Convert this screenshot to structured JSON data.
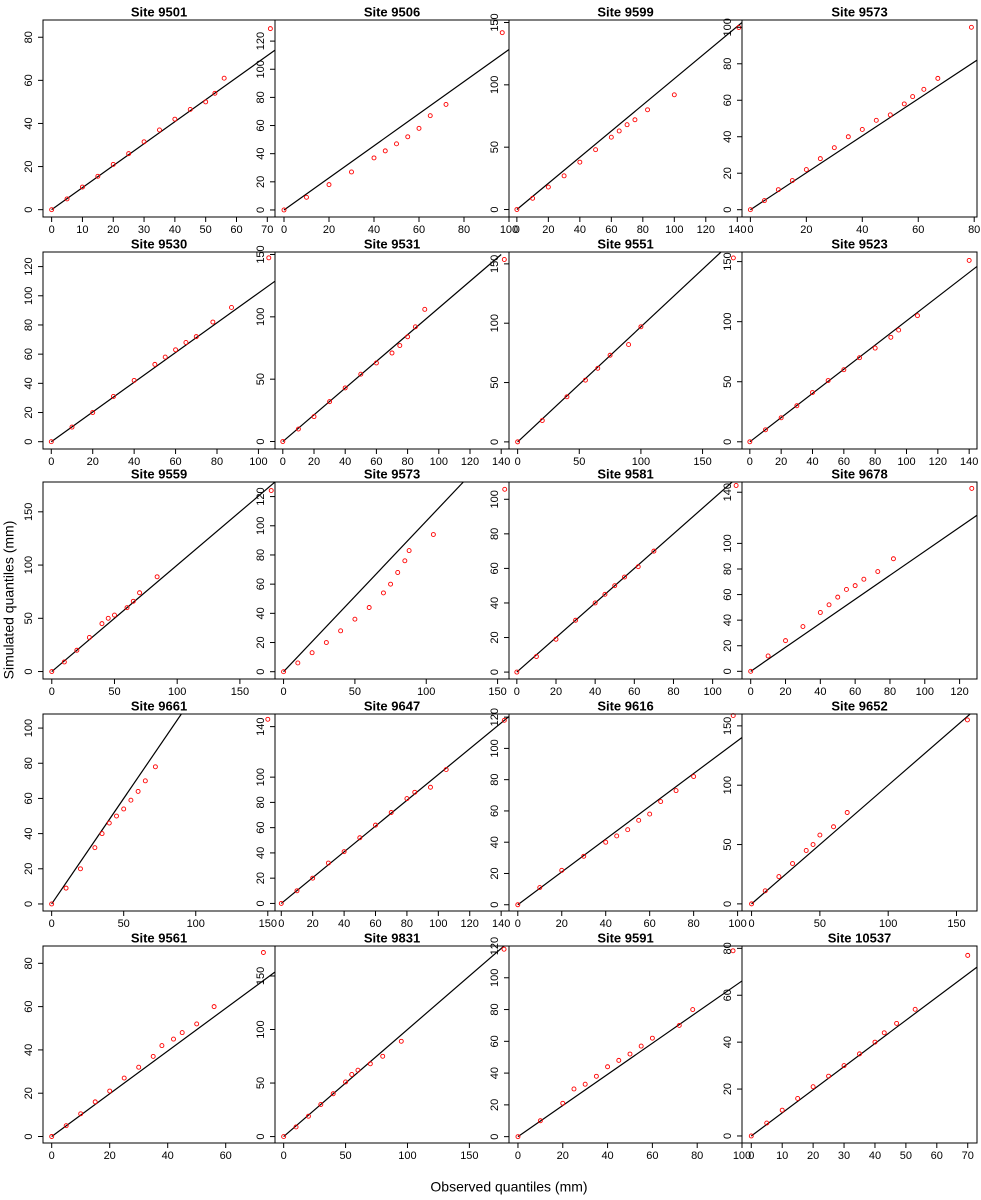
{
  "x_label": "Observed quantiles (mm)",
  "y_label": "Simulated quantiles (mm)",
  "chart_data": [
    {
      "type": "scatter",
      "title": "Site 9501",
      "color": "#ff0000",
      "xlim": [
        -2.8,
        72.5
      ],
      "ylim": [
        -3.4,
        88
      ],
      "xticks": [
        0,
        10,
        20,
        30,
        40,
        50,
        60,
        70
      ],
      "yticks": [
        0,
        20,
        40,
        60,
        80
      ],
      "x": [
        0,
        5,
        10,
        15,
        20,
        25,
        30,
        35,
        40,
        45,
        50,
        53,
        56,
        71
      ],
      "values": [
        0,
        5,
        10.5,
        15.5,
        21,
        26,
        31.5,
        37,
        42,
        46.5,
        50,
        54,
        61,
        84
      ],
      "ref_line": {
        "color": "#000000",
        "x": [
          0,
          72.5
        ],
        "values": [
          0,
          74
        ]
      }
    },
    {
      "type": "scatter",
      "title": "Site 9506",
      "color": "#ff0000",
      "xlim": [
        -4,
        100
      ],
      "ylim": [
        -5,
        135
      ],
      "xticks": [
        0,
        20,
        40,
        60,
        80,
        100
      ],
      "yticks": [
        0,
        20,
        40,
        60,
        80,
        100,
        120
      ],
      "x": [
        0,
        10,
        20,
        30,
        40,
        45,
        50,
        55,
        60,
        65,
        72,
        97
      ],
      "values": [
        0,
        9,
        18,
        27,
        37,
        42,
        47,
        52,
        58,
        67,
        75,
        126
      ],
      "ref_line": {
        "color": "#000000",
        "x": [
          0,
          100
        ],
        "values": [
          0,
          114
        ]
      }
    },
    {
      "type": "scatter",
      "title": "Site 9599",
      "color": "#ff0000",
      "xlim": [
        -5,
        143
      ],
      "ylim": [
        -6,
        152
      ],
      "xticks": [
        0,
        20,
        40,
        60,
        80,
        100,
        120,
        140
      ],
      "yticks": [
        0,
        50,
        100,
        150
      ],
      "x": [
        0,
        10,
        20,
        30,
        40,
        50,
        60,
        65,
        70,
        75,
        83,
        100,
        141
      ],
      "values": [
        0,
        9,
        18,
        27,
        38,
        48,
        58,
        63,
        68,
        72,
        80,
        92,
        146
      ],
      "ref_line": {
        "color": "#000000",
        "x": [
          0,
          143
        ],
        "values": [
          0,
          150
        ]
      }
    },
    {
      "type": "scatter",
      "title": "Site 9573",
      "color": "#ff0000",
      "xlim": [
        -3,
        81
      ],
      "ylim": [
        -4,
        104
      ],
      "xticks": [
        0,
        20,
        40,
        60,
        80
      ],
      "yticks": [
        0,
        20,
        40,
        60,
        80,
        100
      ],
      "x": [
        0,
        5,
        10,
        15,
        20,
        25,
        30,
        35,
        40,
        45,
        50,
        55,
        58,
        62,
        67,
        79
      ],
      "values": [
        0,
        5,
        11,
        16,
        22,
        28,
        34,
        40,
        44,
        49,
        52,
        58,
        62,
        66,
        72,
        100
      ],
      "ref_line": {
        "color": "#000000",
        "x": [
          0,
          81
        ],
        "values": [
          0,
          82
        ]
      }
    },
    {
      "type": "scatter",
      "title": "Site 9530",
      "color": "#ff0000",
      "xlim": [
        -4,
        108
      ],
      "ylim": [
        -5,
        130
      ],
      "xticks": [
        0,
        20,
        40,
        60,
        80,
        100
      ],
      "yticks": [
        0,
        20,
        40,
        60,
        80,
        100,
        120
      ],
      "x": [
        0,
        10,
        20,
        30,
        40,
        50,
        55,
        60,
        65,
        70,
        78,
        87,
        105
      ],
      "values": [
        0,
        10,
        20,
        31,
        42,
        53,
        58,
        63,
        68,
        72,
        82,
        92,
        126
      ],
      "ref_line": {
        "color": "#000000",
        "x": [
          0,
          108
        ],
        "values": [
          0,
          110
        ]
      }
    },
    {
      "type": "scatter",
      "title": "Site 9531",
      "color": "#ff0000",
      "xlim": [
        -5,
        145
      ],
      "ylim": [
        -6,
        152
      ],
      "xticks": [
        0,
        20,
        40,
        60,
        80,
        100,
        120,
        140
      ],
      "yticks": [
        0,
        50,
        100,
        150
      ],
      "x": [
        0,
        10,
        20,
        30,
        40,
        50,
        60,
        70,
        75,
        80,
        85,
        91,
        142
      ],
      "values": [
        0,
        10,
        20,
        32,
        43,
        54,
        63,
        71,
        77,
        84,
        92,
        106,
        146
      ],
      "ref_line": {
        "color": "#000000",
        "x": [
          0,
          140
        ],
        "values": [
          0,
          150
        ]
      }
    },
    {
      "type": "scatter",
      "title": "Site 9551",
      "color": "#ff0000",
      "xlim": [
        -7,
        182
      ],
      "ylim": [
        -6,
        160
      ],
      "xticks": [
        0,
        50,
        100,
        150
      ],
      "yticks": [
        0,
        50,
        100,
        150
      ],
      "x": [
        0,
        20,
        40,
        55,
        65,
        75,
        90,
        100,
        175
      ],
      "values": [
        0,
        18,
        38,
        52,
        62,
        73,
        82,
        97,
        155
      ],
      "ref_line": {
        "color": "#000000",
        "x": [
          0,
          165
        ],
        "values": [
          0,
          160
        ]
      }
    },
    {
      "type": "scatter",
      "title": "Site 9523",
      "color": "#ff0000",
      "xlim": [
        -5,
        145
      ],
      "ylim": [
        -6,
        158
      ],
      "xticks": [
        0,
        20,
        40,
        60,
        80,
        100,
        120,
        140
      ],
      "yticks": [
        0,
        50,
        100,
        150
      ],
      "x": [
        0,
        10,
        20,
        30,
        40,
        50,
        60,
        70,
        80,
        90,
        95,
        107,
        140
      ],
      "values": [
        0,
        10,
        20,
        30,
        41,
        51,
        60,
        70,
        78,
        87,
        93,
        105,
        151
      ],
      "ref_line": {
        "color": "#000000",
        "x": [
          0,
          145
        ],
        "values": [
          0,
          146
        ]
      }
    },
    {
      "type": "scatter",
      "title": "Site 9559",
      "color": "#ff0000",
      "xlim": [
        -7,
        178
      ],
      "ylim": [
        -7,
        178
      ],
      "xticks": [
        0,
        50,
        100,
        150
      ],
      "yticks": [
        0,
        50,
        100,
        150
      ],
      "x": [
        0,
        10,
        20,
        30,
        40,
        45,
        50,
        60,
        65,
        70,
        84,
        175
      ],
      "values": [
        0,
        9,
        20,
        32,
        45,
        50,
        53,
        60,
        66,
        74,
        89,
        170
      ],
      "ref_line": {
        "color": "#000000",
        "x": [
          0,
          178
        ],
        "values": [
          0,
          178
        ]
      }
    },
    {
      "type": "scatter",
      "title": "Site 9573",
      "color": "#ff0000",
      "xlim": [
        -6,
        158
      ],
      "ylim": [
        -5,
        130
      ],
      "xticks": [
        0,
        50,
        100,
        150
      ],
      "yticks": [
        0,
        20,
        40,
        60,
        80,
        100,
        120
      ],
      "x": [
        0,
        10,
        20,
        30,
        40,
        50,
        60,
        70,
        75,
        80,
        85,
        88,
        105,
        155
      ],
      "values": [
        0,
        6,
        13,
        20,
        28,
        36,
        44,
        54,
        60,
        68,
        76,
        83,
        94,
        125
      ],
      "ref_line": {
        "color": "#000000",
        "x": [
          0,
          126
        ],
        "values": [
          0,
          130
        ]
      }
    },
    {
      "type": "scatter",
      "title": "Site 9581",
      "color": "#ff0000",
      "xlim": [
        -4,
        115
      ],
      "ylim": [
        -4,
        110
      ],
      "xticks": [
        0,
        20,
        40,
        60,
        80,
        100
      ],
      "yticks": [
        0,
        20,
        40,
        60,
        80,
        100
      ],
      "x": [
        0,
        10,
        20,
        30,
        40,
        45,
        50,
        55,
        62,
        70,
        112
      ],
      "values": [
        0,
        9,
        19,
        30,
        40,
        45,
        50,
        55,
        61,
        70,
        108
      ],
      "ref_line": {
        "color": "#000000",
        "x": [
          0,
          112
        ],
        "values": [
          0,
          112
        ]
      }
    },
    {
      "type": "scatter",
      "title": "Site 9678",
      "color": "#ff0000",
      "xlim": [
        -5,
        130
      ],
      "ylim": [
        -6,
        148
      ],
      "xticks": [
        0,
        20,
        40,
        60,
        80,
        100,
        120
      ],
      "yticks": [
        0,
        20,
        40,
        60,
        80,
        100,
        140
      ],
      "x": [
        0,
        10,
        20,
        30,
        40,
        45,
        50,
        55,
        60,
        65,
        73,
        82,
        127
      ],
      "values": [
        0,
        12,
        24,
        35,
        46,
        52,
        58,
        64,
        67,
        72,
        78,
        88,
        143
      ],
      "ref_line": {
        "color": "#000000",
        "x": [
          0,
          130
        ],
        "values": [
          0,
          122
        ]
      }
    },
    {
      "type": "scatter",
      "title": "Site 9661",
      "color": "#ff0000",
      "xlim": [
        -6,
        155
      ],
      "ylim": [
        -4,
        108
      ],
      "xticks": [
        0,
        50,
        100,
        150
      ],
      "yticks": [
        0,
        20,
        40,
        60,
        80,
        100
      ],
      "x": [
        0,
        10,
        20,
        30,
        35,
        40,
        45,
        50,
        55,
        60,
        65,
        72,
        150
      ],
      "values": [
        0,
        9,
        20,
        32,
        40,
        46,
        50,
        54,
        59,
        64,
        70,
        78,
        105
      ],
      "ref_line": {
        "color": "#000000",
        "x": [
          0,
          90
        ],
        "values": [
          0,
          108
        ]
      }
    },
    {
      "type": "scatter",
      "title": "Site 9647",
      "color": "#ff0000",
      "xlim": [
        -4,
        145
      ],
      "ylim": [
        -6,
        150
      ],
      "xticks": [
        0,
        20,
        40,
        60,
        80,
        100,
        120,
        140
      ],
      "yticks": [
        0,
        20,
        40,
        60,
        80,
        100,
        140
      ],
      "x": [
        0,
        10,
        20,
        30,
        40,
        50,
        60,
        70,
        80,
        85,
        95,
        105,
        142
      ],
      "values": [
        0,
        10,
        20,
        32,
        41,
        52,
        62,
        72,
        83,
        88,
        92,
        106,
        145
      ],
      "ref_line": {
        "color": "#000000",
        "x": [
          0,
          145
        ],
        "values": [
          0,
          148
        ]
      }
    },
    {
      "type": "scatter",
      "title": "Site 9616",
      "color": "#ff0000",
      "xlim": [
        -4,
        102
      ],
      "ylim": [
        -4,
        122
      ],
      "xticks": [
        0,
        20,
        40,
        60,
        80,
        100
      ],
      "yticks": [
        0,
        20,
        40,
        60,
        80,
        100,
        120
      ],
      "x": [
        0,
        10,
        20,
        30,
        40,
        45,
        50,
        55,
        60,
        65,
        72,
        80,
        98
      ],
      "values": [
        0,
        11,
        22,
        31,
        40,
        44,
        48,
        54,
        58,
        66,
        73,
        82,
        121
      ],
      "ref_line": {
        "color": "#000000",
        "x": [
          0,
          102
        ],
        "values": [
          0,
          107
        ]
      }
    },
    {
      "type": "scatter",
      "title": "Site 9652",
      "color": "#ff0000",
      "xlim": [
        -7,
        165
      ],
      "ylim": [
        -6,
        160
      ],
      "xticks": [
        0,
        50,
        100,
        150
      ],
      "yticks": [
        0,
        50,
        100,
        150
      ],
      "x": [
        0,
        10,
        20,
        30,
        40,
        45,
        50,
        60,
        70,
        158
      ],
      "values": [
        0,
        11,
        23,
        34,
        45,
        50,
        58,
        65,
        77,
        155
      ],
      "ref_line": {
        "color": "#000000",
        "x": [
          0,
          165
        ],
        "values": [
          0,
          165
        ]
      }
    },
    {
      "type": "scatter",
      "title": "Site 9561",
      "color": "#ff0000",
      "xlim": [
        -3,
        77
      ],
      "ylim": [
        -3,
        88
      ],
      "xticks": [
        0,
        20,
        40,
        60
      ],
      "yticks": [
        0,
        20,
        40,
        60,
        80
      ],
      "x": [
        0,
        5,
        10,
        15,
        20,
        25,
        30,
        35,
        38,
        42,
        45,
        50,
        56,
        73
      ],
      "values": [
        0,
        5,
        10.5,
        16,
        21,
        27,
        32,
        37,
        42,
        45,
        48,
        52,
        60,
        85
      ],
      "ref_line": {
        "color": "#000000",
        "x": [
          0,
          77
        ],
        "values": [
          0,
          76
        ]
      }
    },
    {
      "type": "scatter",
      "title": "Site 9831",
      "color": "#ff0000",
      "xlim": [
        -7,
        182
      ],
      "ylim": [
        -6,
        178
      ],
      "xticks": [
        0,
        50,
        100,
        150
      ],
      "yticks": [
        0,
        50,
        100,
        150
      ],
      "x": [
        0,
        10,
        20,
        30,
        40,
        50,
        55,
        60,
        70,
        80,
        95,
        178
      ],
      "values": [
        0,
        9,
        19,
        30,
        40,
        51,
        58,
        62,
        68,
        75,
        89,
        175
      ],
      "ref_line": {
        "color": "#000000",
        "x": [
          0,
          182
        ],
        "values": [
          0,
          182
        ]
      }
    },
    {
      "type": "scatter",
      "title": "Site 9591",
      "color": "#ff0000",
      "xlim": [
        -4,
        100
      ],
      "ylim": [
        -4,
        120
      ],
      "xticks": [
        0,
        20,
        40,
        60,
        80,
        100
      ],
      "yticks": [
        0,
        20,
        40,
        60,
        80,
        100,
        120
      ],
      "x": [
        0,
        10,
        20,
        25,
        30,
        35,
        40,
        45,
        50,
        55,
        60,
        72,
        78,
        96
      ],
      "values": [
        0,
        10,
        21,
        30,
        33,
        38,
        44,
        48,
        52,
        57,
        62,
        70,
        80,
        117
      ],
      "ref_line": {
        "color": "#000000",
        "x": [
          0,
          100
        ],
        "values": [
          0,
          98
        ]
      }
    },
    {
      "type": "scatter",
      "title": "Site 10537",
      "color": "#ff0000",
      "xlim": [
        -3,
        73
      ],
      "ylim": [
        -3,
        81
      ],
      "xticks": [
        0,
        10,
        20,
        30,
        40,
        50,
        60,
        70
      ],
      "yticks": [
        0,
        20,
        40,
        60,
        80
      ],
      "x": [
        0,
        5,
        10,
        15,
        20,
        25,
        30,
        35,
        40,
        43,
        47,
        53,
        70
      ],
      "values": [
        0,
        5.5,
        11,
        16,
        21,
        25.5,
        30,
        35,
        40,
        44,
        48,
        54,
        77
      ],
      "ref_line": {
        "color": "#000000",
        "x": [
          0,
          73
        ],
        "values": [
          0,
          72
        ]
      }
    }
  ]
}
